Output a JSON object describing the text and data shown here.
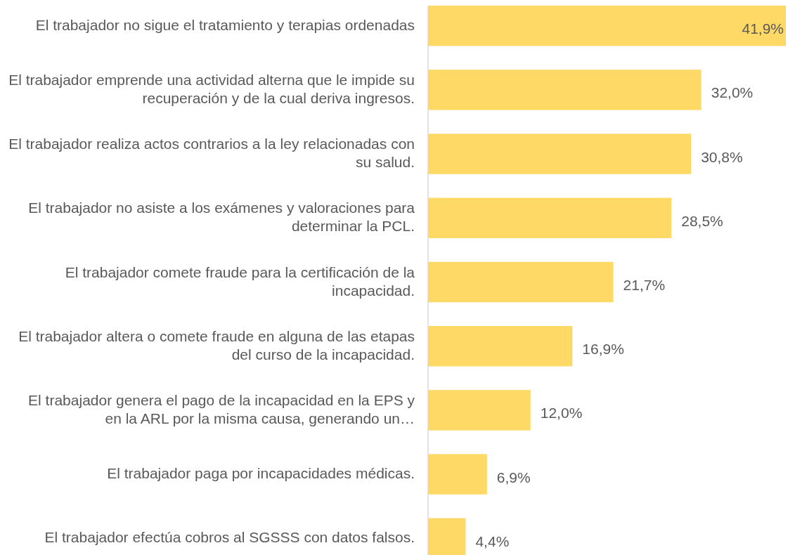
{
  "chart_data": {
    "type": "bar",
    "orientation": "horizontal",
    "categories": [
      "El trabajador no sigue el tratamiento y terapias ordenadas",
      "El trabajador emprende una actividad alterna que le impide su recuperación y de la cual deriva ingresos.",
      "El trabajador realiza actos contrarios a la ley relacionadas con su salud.",
      "El trabajador no asiste a los exámenes y valoraciones para determinar la PCL.",
      "El trabajador comete fraude para la certificación de la incapacidad.",
      "El trabajador altera o comete fraude en alguna de las etapas del curso de la incapacidad.",
      "El trabajador genera el pago de la incapacidad en la EPS y en la ARL por la misma causa, generando un…",
      "El trabajador paga por incapacidades médicas.",
      "El trabajador efectúa cobros al SGSSS con datos falsos."
    ],
    "values": [
      41.9,
      32.0,
      30.8,
      28.5,
      21.7,
      16.9,
      12.0,
      6.9,
      4.4
    ],
    "value_labels": [
      "41,9%",
      "32,0%",
      "30,8%",
      "28,5%",
      "21,7%",
      "16,9%",
      "12,0%",
      "6,9%",
      "4,4%"
    ],
    "color": "#ffd966",
    "xlim": [
      0,
      41.9
    ]
  }
}
